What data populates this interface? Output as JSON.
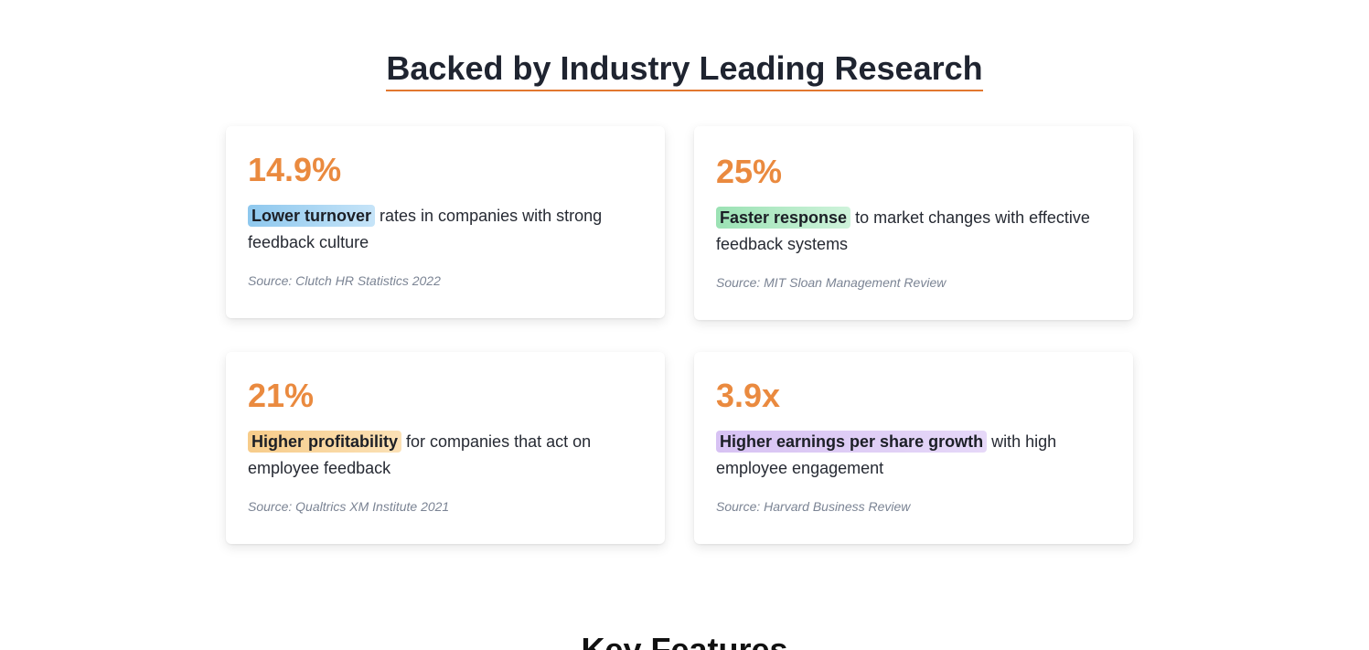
{
  "research": {
    "title": "Backed by Industry Leading Research",
    "cards": [
      {
        "stat": "14.9%",
        "highlight": "Lower turnover",
        "text": " rates in companies with strong feedback culture",
        "source": "Source: Clutch HR Statistics 2022"
      },
      {
        "stat": "25%",
        "highlight": "Faster response",
        "text": " to market changes with effective feedback systems",
        "source": "Source: MIT Sloan Management Review"
      },
      {
        "stat": "21%",
        "highlight": "Higher profitability",
        "text": " for companies that act on employee feedback",
        "source": "Source: Qualtrics XM Institute 2021"
      },
      {
        "stat": "3.9x",
        "highlight": "Higher earnings per share growth",
        "text": " with high employee engagement",
        "source": "Source: Harvard Business Review"
      }
    ]
  },
  "next_section": {
    "title": "Key Features"
  },
  "colors": {
    "accent": "#e2772f",
    "stat": "#ea8a3f",
    "highlight_blue": "#8ec8ee",
    "highlight_green": "#9be2b4",
    "highlight_orange": "#f7cc8a",
    "highlight_purple": "#d7c2f3"
  }
}
